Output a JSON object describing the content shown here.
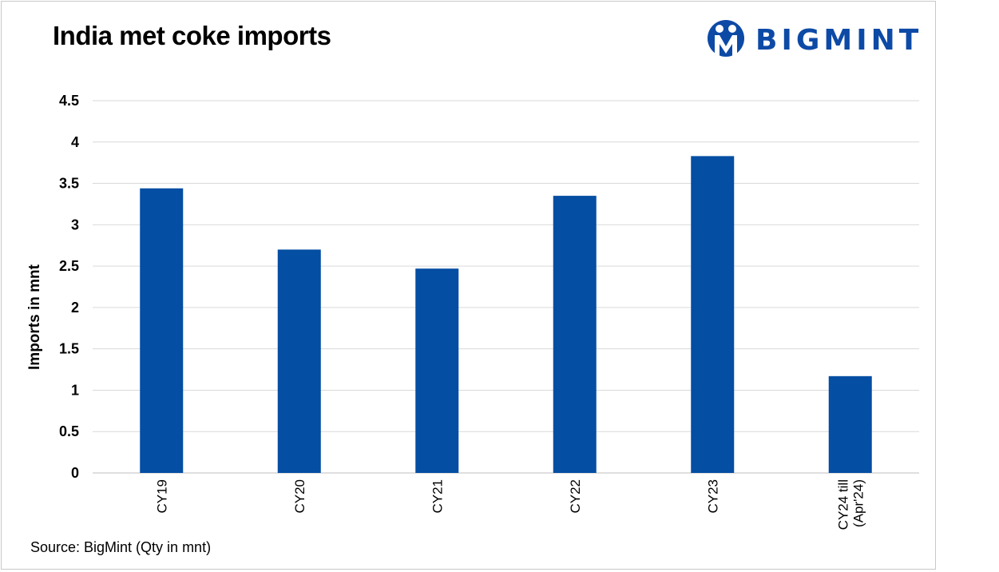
{
  "colors": {
    "bar": "#044ea3",
    "grid": "#d9d9d9",
    "axis": "#bfbfbf",
    "brand": "#0d4aa6"
  },
  "header": {
    "title": "India met coke imports"
  },
  "logo": {
    "text": "BIGMINT",
    "icon": "bigmint-logo-icon"
  },
  "footer": {
    "source": "Source: BigMint (Qty in mnt)"
  },
  "chart_data": {
    "type": "bar",
    "categories": [
      "CY19",
      "CY20",
      "CY21",
      "CY22",
      "CY23",
      "CY24 till (Apr'24)"
    ],
    "category_lines": [
      [
        "CY19"
      ],
      [
        "CY20"
      ],
      [
        "CY21"
      ],
      [
        "CY22"
      ],
      [
        "CY23"
      ],
      [
        "CY24 till",
        "(Apr'24)"
      ]
    ],
    "values": [
      3.44,
      2.7,
      2.47,
      3.35,
      3.83,
      1.17
    ],
    "title": "India met coke imports",
    "xlabel": "",
    "ylabel": "Imports in mnt",
    "ylim": [
      0,
      4.5
    ],
    "yticks": [
      "0",
      "0.5",
      "1",
      "1.5",
      "2",
      "2.5",
      "3",
      "3.5",
      "4",
      "4.5"
    ],
    "grid": true,
    "legend": "none"
  }
}
